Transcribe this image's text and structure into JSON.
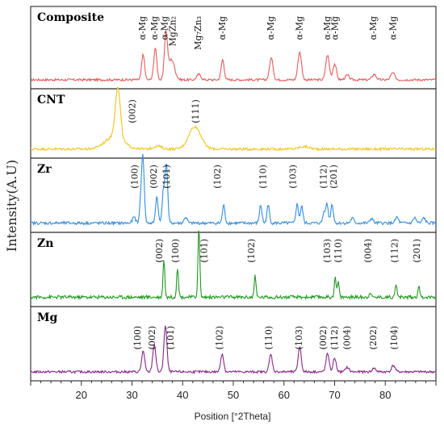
{
  "chart_data": {
    "type": "line",
    "xlabel": "Position [°2Theta]",
    "ylabel": "Intensity(A.U)",
    "xlim": [
      10,
      90
    ],
    "xticks": [
      20,
      30,
      40,
      50,
      60,
      70,
      80
    ],
    "grid": false,
    "panels": [
      {
        "name": "Composite",
        "color": "#ee5a5a",
        "peaks": [
          {
            "x": 32.2,
            "h": 0.55,
            "w": 0.3
          },
          {
            "x": 34.6,
            "h": 0.7,
            "w": 0.3
          },
          {
            "x": 36.7,
            "h": 1.0,
            "w": 0.3
          },
          {
            "x": 37.8,
            "h": 0.45,
            "w": 0.6
          },
          {
            "x": 43.2,
            "h": 0.12,
            "w": 0.4
          },
          {
            "x": 47.9,
            "h": 0.45,
            "w": 0.3
          },
          {
            "x": 57.5,
            "h": 0.48,
            "w": 0.35
          },
          {
            "x": 63.1,
            "h": 0.62,
            "w": 0.35
          },
          {
            "x": 68.6,
            "h": 0.55,
            "w": 0.35
          },
          {
            "x": 70.0,
            "h": 0.35,
            "w": 0.35
          },
          {
            "x": 72.5,
            "h": 0.1,
            "w": 0.4
          },
          {
            "x": 77.8,
            "h": 0.12,
            "w": 0.4
          },
          {
            "x": 81.5,
            "h": 0.15,
            "w": 0.4
          }
        ],
        "annotations": [
          {
            "text": "α-Mg",
            "x": 32.0
          },
          {
            "text": "α-Mg",
            "x": 34.4
          },
          {
            "text": "α-Mg",
            "x": 36.4
          },
          {
            "text": "MgZn₂",
            "x": 38.0
          },
          {
            "text": "Mg₇Zn₃",
            "x": 43.0
          },
          {
            "text": "α-Mg",
            "x": 47.8
          },
          {
            "text": "α-Mg",
            "x": 57.3
          },
          {
            "text": "α-Mg",
            "x": 63.0
          },
          {
            "text": "α-Mg",
            "x": 68.5
          },
          {
            "text": "α-Mg",
            "x": 70.0
          },
          {
            "text": "α-Mg",
            "x": 77.6
          },
          {
            "text": "α-Mg",
            "x": 81.5
          }
        ]
      },
      {
        "name": "CNT",
        "color": "#f2c418",
        "peaks": [
          {
            "x": 26.5,
            "h": 0.25,
            "w": 1.8
          },
          {
            "x": 27.2,
            "h": 1.0,
            "w": 0.5
          },
          {
            "x": 42.4,
            "h": 0.45,
            "w": 1.2
          },
          {
            "x": 35.0,
            "h": 0.06,
            "w": 0.8
          },
          {
            "x": 64.0,
            "h": 0.05,
            "w": 1.0
          }
        ],
        "annotations": [
          {
            "text": "(002)",
            "x": 30.0
          },
          {
            "text": "(111)",
            "x": 42.5
          }
        ]
      },
      {
        "name": "Zr",
        "color": "#2f8fe6",
        "peaks": [
          {
            "x": 30.4,
            "h": 0.1,
            "w": 0.3
          },
          {
            "x": 31.8,
            "h": 0.45,
            "w": 0.25
          },
          {
            "x": 32.2,
            "h": 1.0,
            "w": 0.25
          },
          {
            "x": 34.9,
            "h": 0.45,
            "w": 0.25
          },
          {
            "x": 36.2,
            "h": 0.55,
            "w": 0.25
          },
          {
            "x": 36.8,
            "h": 1.0,
            "w": 0.25
          },
          {
            "x": 40.6,
            "h": 0.1,
            "w": 0.3
          },
          {
            "x": 48.1,
            "h": 0.3,
            "w": 0.25
          },
          {
            "x": 55.4,
            "h": 0.3,
            "w": 0.25
          },
          {
            "x": 56.9,
            "h": 0.3,
            "w": 0.25
          },
          {
            "x": 62.6,
            "h": 0.32,
            "w": 0.25
          },
          {
            "x": 63.5,
            "h": 0.28,
            "w": 0.25
          },
          {
            "x": 67.9,
            "h": 0.18,
            "w": 0.25
          },
          {
            "x": 68.5,
            "h": 0.32,
            "w": 0.25
          },
          {
            "x": 69.5,
            "h": 0.32,
            "w": 0.25
          },
          {
            "x": 73.5,
            "h": 0.08,
            "w": 0.3
          },
          {
            "x": 77.3,
            "h": 0.08,
            "w": 0.3
          },
          {
            "x": 82.3,
            "h": 0.1,
            "w": 0.3
          },
          {
            "x": 85.8,
            "h": 0.09,
            "w": 0.3
          },
          {
            "x": 87.6,
            "h": 0.09,
            "w": 0.3
          }
        ],
        "annotations": [
          {
            "text": "(100)",
            "x": 30.5
          },
          {
            "text": "(002)",
            "x": 34.2
          },
          {
            "text": "(101)",
            "x": 36.8
          },
          {
            "text": "(102)",
            "x": 46.8
          },
          {
            "text": "(110)",
            "x": 55.8
          },
          {
            "text": "(103)",
            "x": 61.7
          },
          {
            "text": "(112)",
            "x": 67.8
          },
          {
            "text": "(201)",
            "x": 69.8
          }
        ]
      },
      {
        "name": "Zn",
        "color": "#1f9a1f",
        "peaks": [
          {
            "x": 36.3,
            "h": 0.55,
            "w": 0.18
          },
          {
            "x": 39.0,
            "h": 0.43,
            "w": 0.18
          },
          {
            "x": 43.2,
            "h": 1.0,
            "w": 0.18
          },
          {
            "x": 54.3,
            "h": 0.3,
            "w": 0.18
          },
          {
            "x": 70.1,
            "h": 0.28,
            "w": 0.18
          },
          {
            "x": 70.7,
            "h": 0.22,
            "w": 0.18
          },
          {
            "x": 77.0,
            "h": 0.08,
            "w": 0.18
          },
          {
            "x": 82.1,
            "h": 0.2,
            "w": 0.18
          },
          {
            "x": 86.6,
            "h": 0.16,
            "w": 0.18
          }
        ],
        "annotations": [
          {
            "text": "(002)",
            "x": 35.3
          },
          {
            "text": "(100)",
            "x": 38.5
          },
          {
            "text": "(101)",
            "x": 44.2
          },
          {
            "text": "(102)",
            "x": 53.5
          },
          {
            "text": "(103)",
            "x": 68.5
          },
          {
            "text": "(110)",
            "x": 70.6
          },
          {
            "text": "(004)",
            "x": 76.5
          },
          {
            "text": "(112)",
            "x": 81.8
          },
          {
            "text": "(201)",
            "x": 86.2
          }
        ]
      },
      {
        "name": "Mg",
        "color": "#8a258a",
        "peaks": [
          {
            "x": 32.2,
            "h": 0.45,
            "w": 0.3
          },
          {
            "x": 34.4,
            "h": 0.6,
            "w": 0.3
          },
          {
            "x": 36.6,
            "h": 1.0,
            "w": 0.3
          },
          {
            "x": 47.8,
            "h": 0.4,
            "w": 0.3
          },
          {
            "x": 57.4,
            "h": 0.38,
            "w": 0.3
          },
          {
            "x": 63.1,
            "h": 0.55,
            "w": 0.3
          },
          {
            "x": 68.6,
            "h": 0.4,
            "w": 0.3
          },
          {
            "x": 70.0,
            "h": 0.3,
            "w": 0.3
          },
          {
            "x": 72.5,
            "h": 0.1,
            "w": 0.35
          },
          {
            "x": 77.8,
            "h": 0.08,
            "w": 0.35
          },
          {
            "x": 81.6,
            "h": 0.14,
            "w": 0.35
          }
        ],
        "annotations": [
          {
            "text": "(100)",
            "x": 31.0
          },
          {
            "text": "(002)",
            "x": 33.9
          },
          {
            "text": "(101)",
            "x": 37.6
          },
          {
            "text": "(102)",
            "x": 47.2
          },
          {
            "text": "(110)",
            "x": 56.9
          },
          {
            "text": "(103)",
            "x": 62.9
          },
          {
            "text": "(002)",
            "x": 67.7
          },
          {
            "text": "(112)",
            "x": 69.9
          },
          {
            "text": "(004)",
            "x": 72.4
          },
          {
            "text": "(202)",
            "x": 77.6
          },
          {
            "text": "(104)",
            "x": 81.7
          }
        ]
      }
    ]
  }
}
